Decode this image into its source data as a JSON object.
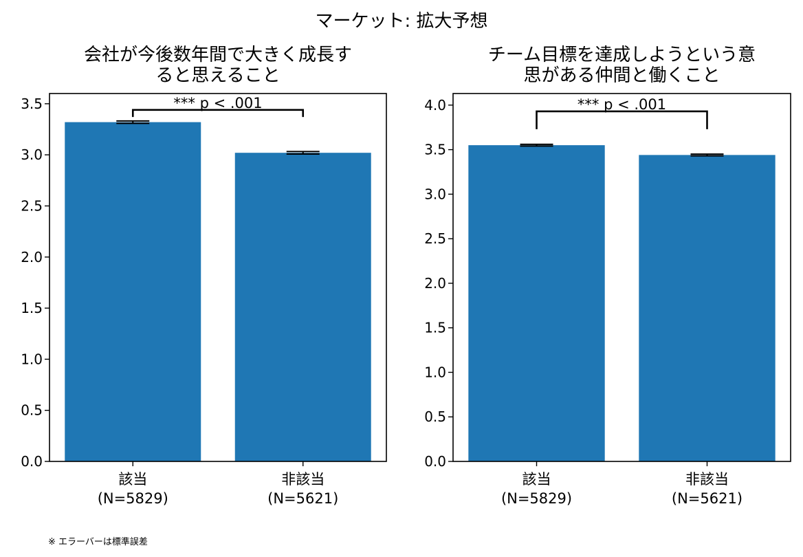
{
  "figure": {
    "suptitle": "マーケット: 拡大予想",
    "footnote": "※ エラーバーは標準誤差"
  },
  "chart_data": [
    {
      "type": "bar",
      "title": "会社が今後数年間で大きく成長する と思えること",
      "title_lines": [
        "会社が今後数年間で大きく成長す",
        "ると思えること"
      ],
      "categories": [
        "該当\n(N=5829)",
        "非該当\n(N=5621)"
      ],
      "category_lines": [
        [
          "該当",
          "(N=5829)"
        ],
        [
          "非該当",
          "(N=5621)"
        ]
      ],
      "values": [
        3.32,
        3.02
      ],
      "errors": [
        0.012,
        0.012
      ],
      "ylim": [
        0,
        3.6
      ],
      "yticks": [
        0.0,
        0.5,
        1.0,
        1.5,
        2.0,
        2.5,
        3.0,
        3.5
      ],
      "ytick_labels": [
        "0.0",
        "0.5",
        "1.0",
        "1.5",
        "2.0",
        "2.5",
        "3.0",
        "3.5"
      ],
      "bar_color": "#1f77b4",
      "significance": {
        "label": "*** p < .001",
        "y": 3.44,
        "tip": 0.07
      },
      "xlabel": "",
      "ylabel": ""
    },
    {
      "type": "bar",
      "title": "チーム目標を達成しようという意 思がある仲間と働くこと",
      "title_lines": [
        "チーム目標を達成しようという意",
        "思がある仲間と働くこと"
      ],
      "categories": [
        "該当\n(N=5829)",
        "非該当\n(N=5621)"
      ],
      "category_lines": [
        [
          "該当",
          "(N=5829)"
        ],
        [
          "非該当",
          "(N=5621)"
        ]
      ],
      "values": [
        3.55,
        3.44
      ],
      "errors": [
        0.01,
        0.01
      ],
      "ylim": [
        0,
        4.13
      ],
      "yticks": [
        0.0,
        0.5,
        1.0,
        1.5,
        2.0,
        2.5,
        3.0,
        3.5,
        4.0
      ],
      "ytick_labels": [
        "0.0",
        "0.5",
        "1.0",
        "1.5",
        "2.0",
        "2.5",
        "3.0",
        "3.5",
        "4.0"
      ],
      "bar_color": "#1f77b4",
      "significance": {
        "label": "*** p < .001",
        "y": 3.93,
        "tip": 0.2
      },
      "xlabel": "",
      "ylabel": ""
    }
  ]
}
